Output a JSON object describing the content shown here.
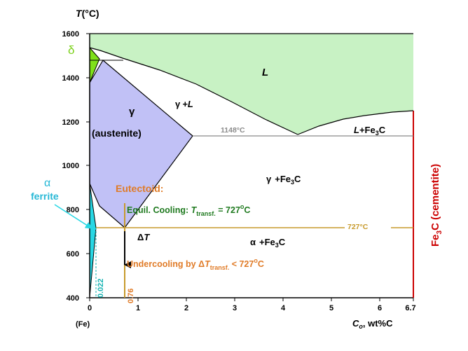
{
  "axes": {
    "y_title": "T(°C)",
    "y_title_var": "T",
    "y_title_unit": "(°C)",
    "y_ticks": [
      "1600",
      "1400",
      "1200",
      "1000",
      "800",
      "600",
      "400"
    ],
    "x_ticks": [
      "0",
      "1",
      "2",
      "3",
      "4",
      "5",
      "6",
      "6.7"
    ],
    "x_origin_note": "(Fe)",
    "x_title_var": "C",
    "x_title_sub": "o",
    "x_title_rest": ", wt%C",
    "x_range": [
      0,
      6.7
    ],
    "y_range": [
      400,
      1600
    ]
  },
  "phases": {
    "liquid": "L",
    "delta": "δ",
    "gamma": "γ",
    "austenite": "(austenite)",
    "gamma_plus_L_greek": "γ",
    "gamma_plus_L_rest": "+L",
    "L_plus_Fe3C_a": "L",
    "L_plus_Fe3C_b": "+Fe",
    "L_plus_Fe3C_sub": "3",
    "L_plus_Fe3C_c": "C",
    "gamma_Fe3C_a": "γ",
    "gamma_Fe3C_b": "+Fe",
    "gamma_Fe3C_sub": "3",
    "gamma_Fe3C_c": "C",
    "alpha_Fe3C_a": "α",
    "alpha_Fe3C_b": "+Fe",
    "alpha_Fe3C_sub": "3",
    "alpha_Fe3C_c": "C",
    "alpha_symbol": "α",
    "ferrite": "ferrite",
    "cementite_a": "Fe",
    "cementite_sub": "3",
    "cementite_b": "C (cementite)"
  },
  "temperatures": {
    "eutectic": "1148°C",
    "eutectoid": "727°C"
  },
  "annotations": {
    "eutectoid_title": "Eutectoid:",
    "equil_a": "Equil. Cooling: ",
    "equil_T": "T",
    "equil_sub": "transf.",
    "equil_b": " = 727",
    "equil_sup": "o",
    "equil_c": "C",
    "delta_T_delta": "Δ",
    "delta_T_var": "T",
    "under_a": "Undercooling by Δ",
    "under_T": "T",
    "under_sub": "transf.",
    "under_b": " < 727",
    "under_sup": "o",
    "under_c": "C"
  },
  "compositions": {
    "alpha_max": "0.022",
    "eutectoid": "0.76"
  },
  "colors": {
    "liquid_fill": "#c8f2c4",
    "austenite_fill": "#c1c1f6",
    "delta_fill": "#7fe01a",
    "ferrite_fill": "#27d7e4",
    "eutectoid_line": "#c79a2b",
    "eutectoid_text": "#e07b27",
    "equil_text": "#1f7a1f",
    "cementite": "#cc0000",
    "teal": "#16b3b3",
    "delta_label": "#7ad119",
    "eutectic_line": "#8a8a8a"
  }
}
